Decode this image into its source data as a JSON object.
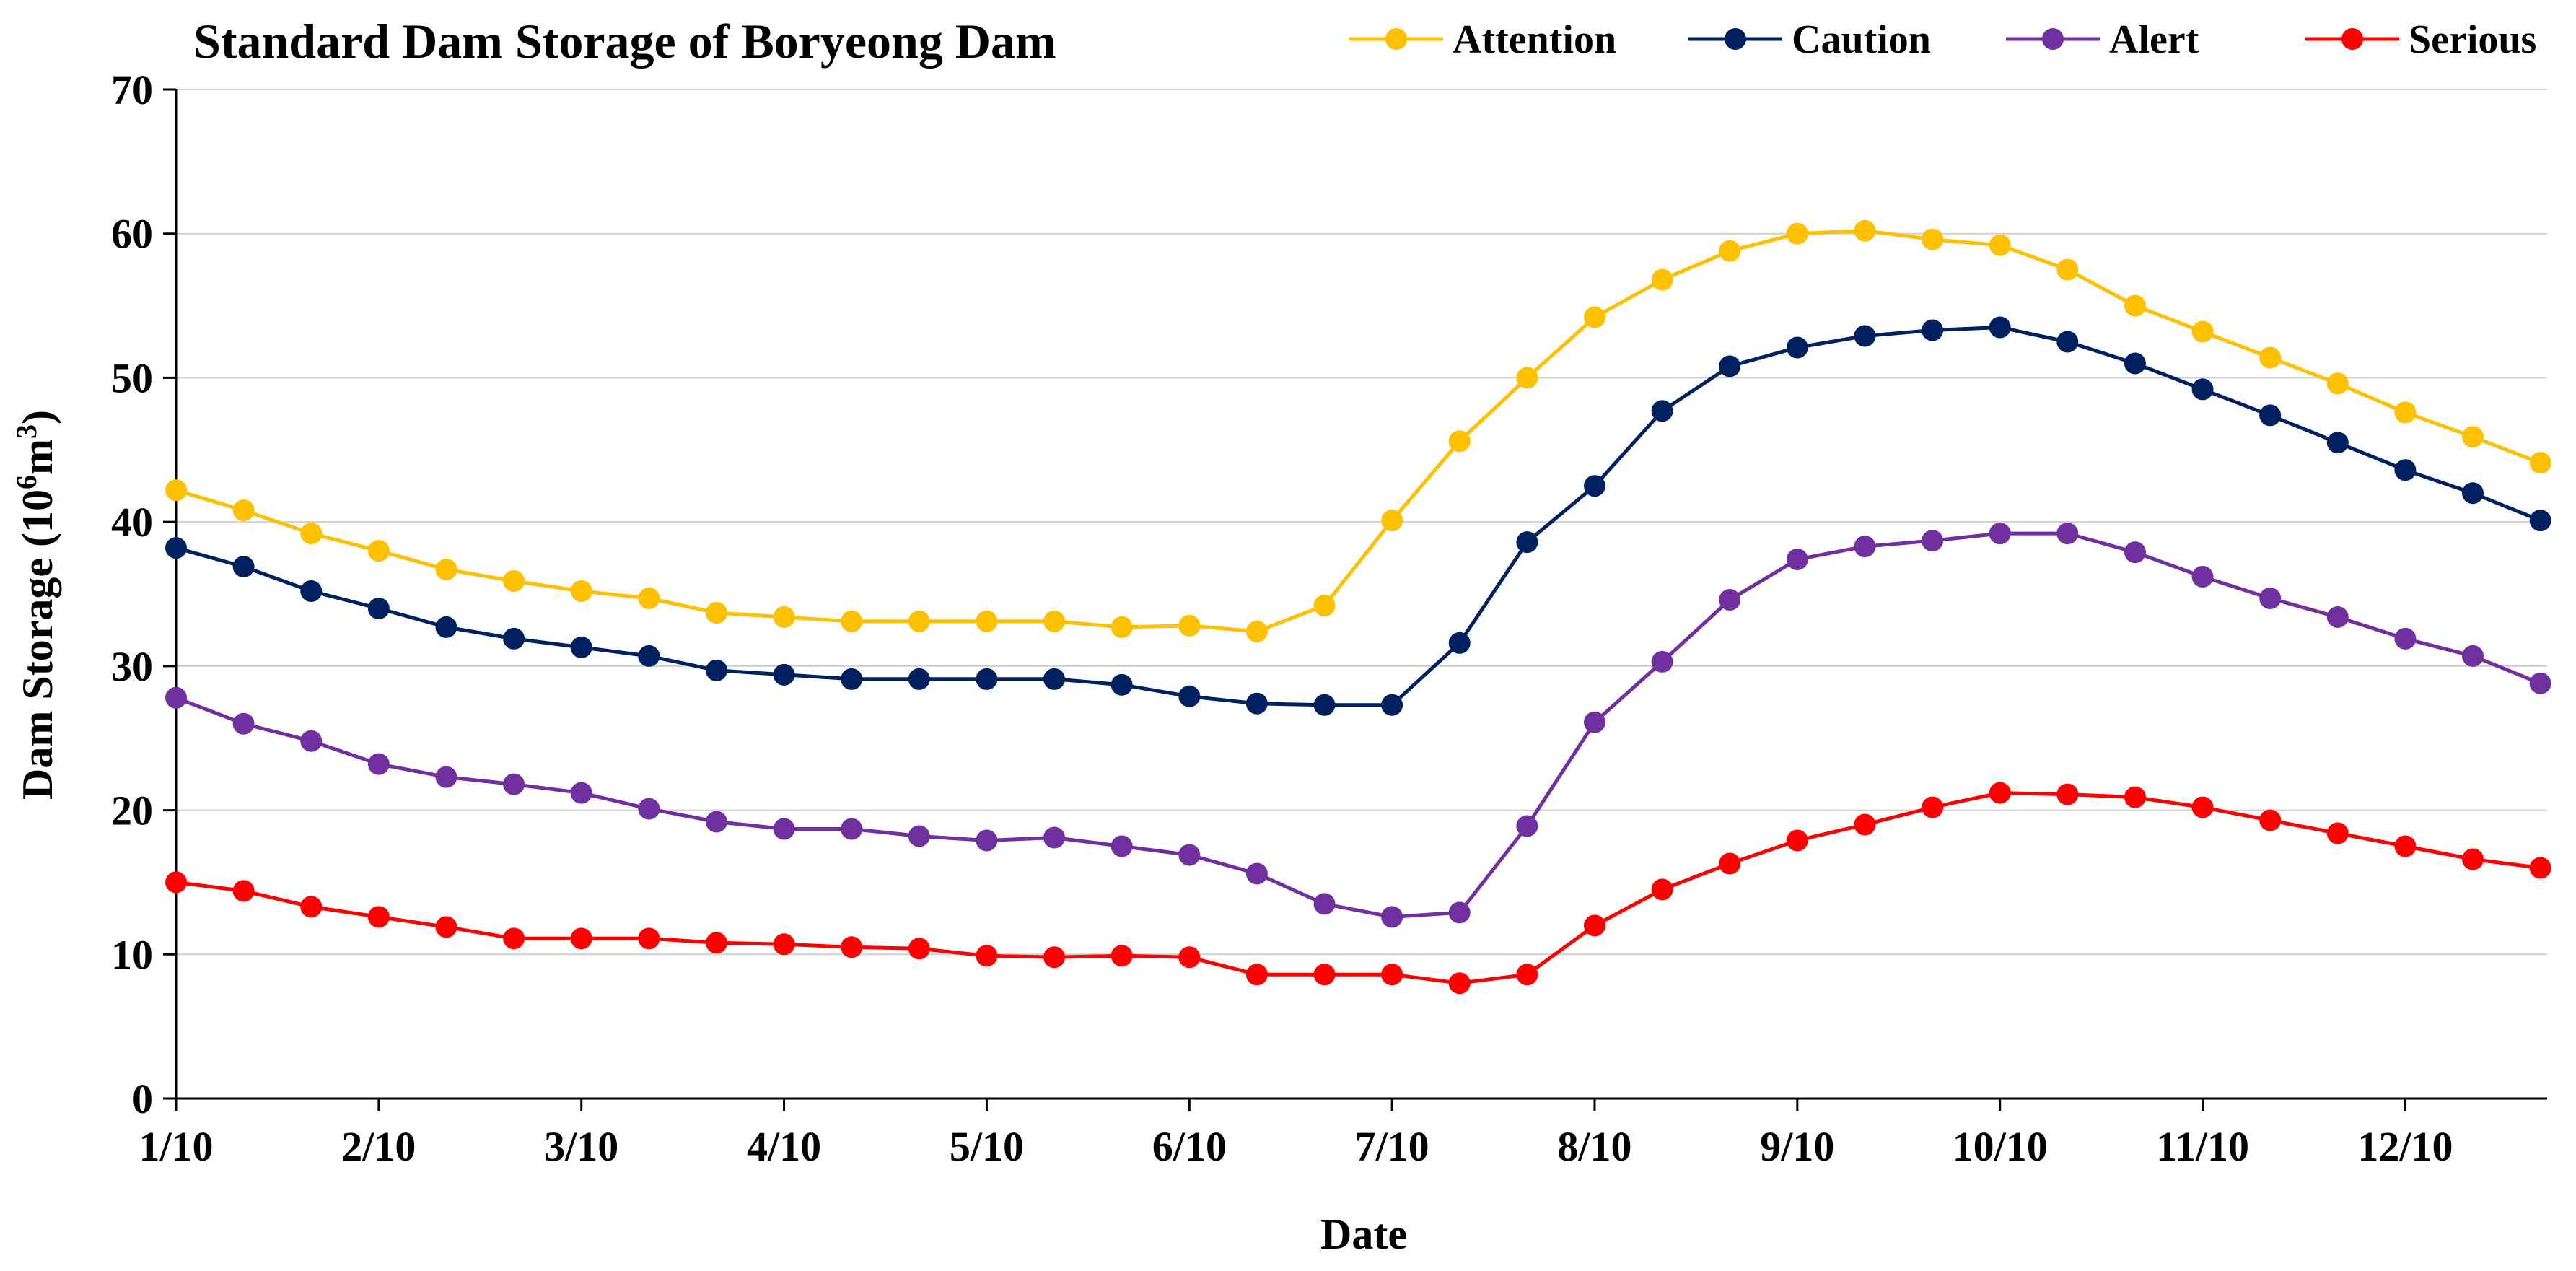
{
  "chart_data": {
    "type": "line",
    "title": "Standard Dam Storage of Boryeong Dam",
    "xlabel": "Date",
    "ylabel": "Dam Storage (10",
    "ylabel_sup1": "6",
    "ylabel_mid": "m",
    "ylabel_sup2": "3",
    "ylabel_end": ")",
    "ylim": [
      0,
      70
    ],
    "yticks": [
      "0",
      "10",
      "20",
      "30",
      "40",
      "50",
      "60",
      "70"
    ],
    "xticks": [
      "1/10",
      "2/10",
      "3/10",
      "4/10",
      "5/10",
      "6/10",
      "7/10",
      "8/10",
      "9/10",
      "10/10",
      "11/10",
      "12/10"
    ],
    "x_start": 1.0,
    "x_end": 12.7,
    "x": [
      1.0,
      1.3333,
      1.6667,
      2.0,
      2.3333,
      2.6667,
      3.0,
      3.3333,
      3.6667,
      4.0,
      4.3333,
      4.6667,
      5.0,
      5.3333,
      5.6667,
      6.0,
      6.3333,
      6.6667,
      7.0,
      7.3333,
      7.6667,
      8.0,
      8.3333,
      8.6667,
      9.0,
      9.3333,
      9.6667,
      10.0,
      10.3333,
      10.6667,
      11.0,
      11.3333,
      11.6667,
      12.0,
      12.3333,
      12.6667
    ],
    "series": [
      {
        "name": "Attention",
        "color": "#FFC000",
        "values": [
          42.2,
          40.8,
          39.2,
          38.0,
          36.7,
          35.9,
          35.2,
          34.7,
          33.7,
          33.4,
          33.1,
          33.1,
          33.1,
          33.1,
          32.7,
          32.8,
          32.4,
          34.2,
          40.1,
          45.6,
          50.0,
          54.2,
          56.8,
          58.8,
          60.0,
          60.2,
          59.6,
          59.2,
          57.5,
          55.0,
          53.2,
          51.4,
          49.6,
          47.6,
          45.9,
          44.1
        ]
      },
      {
        "name": "Caution",
        "color": "#002060",
        "values": [
          38.2,
          36.9,
          35.2,
          34.0,
          32.7,
          31.9,
          31.3,
          30.7,
          29.7,
          29.4,
          29.1,
          29.1,
          29.1,
          29.1,
          28.7,
          27.9,
          27.4,
          27.3,
          27.3,
          31.6,
          38.6,
          42.5,
          47.7,
          50.8,
          52.1,
          52.9,
          53.3,
          53.5,
          52.5,
          51.0,
          49.2,
          47.4,
          45.5,
          43.6,
          42.0,
          40.1
        ]
      },
      {
        "name": "Alert",
        "color": "#7030A0",
        "values": [
          27.8,
          26.0,
          24.8,
          23.2,
          22.3,
          21.8,
          21.2,
          20.1,
          19.2,
          18.7,
          18.7,
          18.2,
          17.9,
          18.1,
          17.5,
          16.9,
          15.6,
          13.5,
          12.6,
          12.9,
          18.9,
          26.1,
          30.3,
          34.6,
          37.4,
          38.3,
          38.7,
          39.2,
          39.2,
          37.9,
          36.2,
          34.7,
          33.4,
          31.9,
          30.7,
          28.8
        ]
      },
      {
        "name": "Serious",
        "color": "#FF0000",
        "values": [
          15.0,
          14.4,
          13.3,
          12.6,
          11.9,
          11.1,
          11.1,
          11.1,
          10.8,
          10.7,
          10.5,
          10.4,
          9.9,
          9.8,
          9.9,
          9.8,
          8.6,
          8.6,
          8.6,
          8.0,
          8.6,
          12.0,
          14.5,
          16.3,
          17.9,
          19.0,
          20.2,
          21.2,
          21.1,
          20.9,
          20.2,
          19.3,
          18.4,
          17.5,
          16.6,
          16.0
        ]
      }
    ]
  }
}
